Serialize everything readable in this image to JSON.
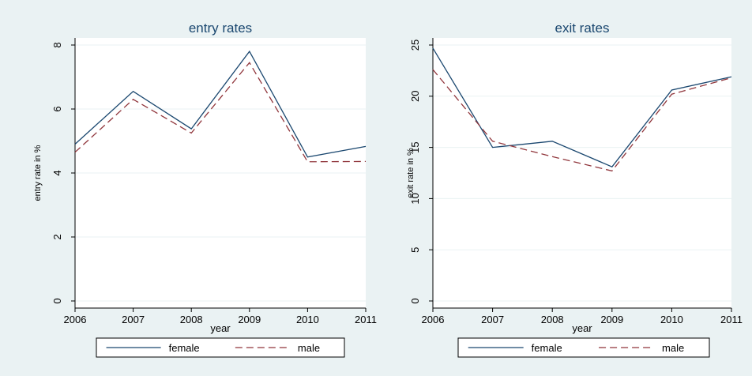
{
  "colors": {
    "background": "#eaf2f3",
    "plot_bg": "#ffffff",
    "female": "#1a476f",
    "male": "#90353b",
    "grid": "#eaf2f3"
  },
  "chart_data": [
    {
      "type": "line",
      "title": "entry rates",
      "xlabel": "year",
      "ylabel": "entry rate in %",
      "x": [
        2006,
        2007,
        2008,
        2009,
        2010,
        2011
      ],
      "xlim": [
        2006,
        2011
      ],
      "ylim": [
        0,
        8
      ],
      "yticks": [
        0,
        2,
        4,
        6,
        8
      ],
      "grid": true,
      "legend": "bottom",
      "series": [
        {
          "name": "female",
          "values": [
            4.9,
            6.55,
            5.38,
            7.8,
            4.5,
            4.83
          ]
        },
        {
          "name": "male",
          "values": [
            4.65,
            6.3,
            5.25,
            7.45,
            4.35,
            4.36
          ]
        }
      ]
    },
    {
      "type": "line",
      "title": "exit rates",
      "xlabel": "year",
      "ylabel": "exit rate in %",
      "x": [
        2006,
        2007,
        2008,
        2009,
        2010,
        2011
      ],
      "xlim": [
        2006,
        2011
      ],
      "ylim": [
        0,
        25
      ],
      "yticks": [
        0,
        5,
        10,
        15,
        20,
        25
      ],
      "grid": true,
      "legend": "bottom",
      "series": [
        {
          "name": "female",
          "values": [
            24.7,
            15.0,
            15.6,
            13.1,
            20.6,
            21.9
          ]
        },
        {
          "name": "male",
          "values": [
            22.6,
            15.6,
            14.1,
            12.7,
            20.2,
            21.8
          ]
        }
      ]
    }
  ]
}
